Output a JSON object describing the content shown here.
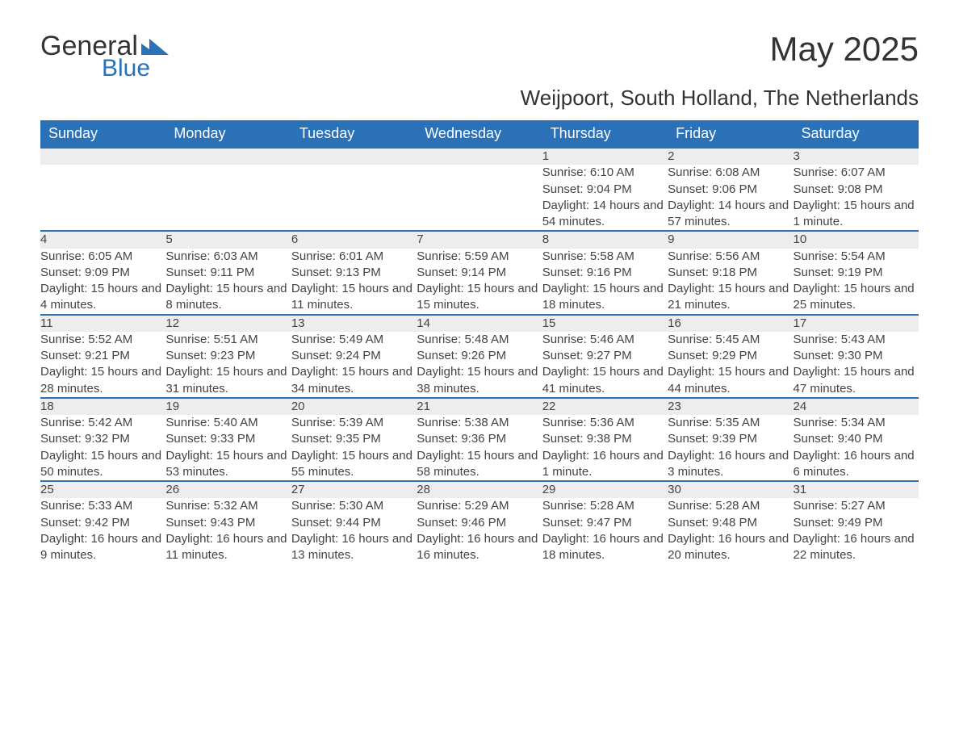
{
  "logo": {
    "text_general": "General",
    "text_blue": "Blue",
    "shape_color": "#2a71b8"
  },
  "title": "May 2025",
  "location": "Weijpoort, South Holland, The Netherlands",
  "colors": {
    "header_bg": "#2a71b8",
    "header_text": "#ffffff",
    "daynum_bg": "#ededed",
    "border": "#2a71b8",
    "body_text": "#444444",
    "page_bg": "#ffffff"
  },
  "weekdays": [
    "Sunday",
    "Monday",
    "Tuesday",
    "Wednesday",
    "Thursday",
    "Friday",
    "Saturday"
  ],
  "weeks": [
    [
      null,
      null,
      null,
      null,
      {
        "n": "1",
        "sunrise": "6:10 AM",
        "sunset": "9:04 PM",
        "daylight": "14 hours and 54 minutes."
      },
      {
        "n": "2",
        "sunrise": "6:08 AM",
        "sunset": "9:06 PM",
        "daylight": "14 hours and 57 minutes."
      },
      {
        "n": "3",
        "sunrise": "6:07 AM",
        "sunset": "9:08 PM",
        "daylight": "15 hours and 1 minute."
      }
    ],
    [
      {
        "n": "4",
        "sunrise": "6:05 AM",
        "sunset": "9:09 PM",
        "daylight": "15 hours and 4 minutes."
      },
      {
        "n": "5",
        "sunrise": "6:03 AM",
        "sunset": "9:11 PM",
        "daylight": "15 hours and 8 minutes."
      },
      {
        "n": "6",
        "sunrise": "6:01 AM",
        "sunset": "9:13 PM",
        "daylight": "15 hours and 11 minutes."
      },
      {
        "n": "7",
        "sunrise": "5:59 AM",
        "sunset": "9:14 PM",
        "daylight": "15 hours and 15 minutes."
      },
      {
        "n": "8",
        "sunrise": "5:58 AM",
        "sunset": "9:16 PM",
        "daylight": "15 hours and 18 minutes."
      },
      {
        "n": "9",
        "sunrise": "5:56 AM",
        "sunset": "9:18 PM",
        "daylight": "15 hours and 21 minutes."
      },
      {
        "n": "10",
        "sunrise": "5:54 AM",
        "sunset": "9:19 PM",
        "daylight": "15 hours and 25 minutes."
      }
    ],
    [
      {
        "n": "11",
        "sunrise": "5:52 AM",
        "sunset": "9:21 PM",
        "daylight": "15 hours and 28 minutes."
      },
      {
        "n": "12",
        "sunrise": "5:51 AM",
        "sunset": "9:23 PM",
        "daylight": "15 hours and 31 minutes."
      },
      {
        "n": "13",
        "sunrise": "5:49 AM",
        "sunset": "9:24 PM",
        "daylight": "15 hours and 34 minutes."
      },
      {
        "n": "14",
        "sunrise": "5:48 AM",
        "sunset": "9:26 PM",
        "daylight": "15 hours and 38 minutes."
      },
      {
        "n": "15",
        "sunrise": "5:46 AM",
        "sunset": "9:27 PM",
        "daylight": "15 hours and 41 minutes."
      },
      {
        "n": "16",
        "sunrise": "5:45 AM",
        "sunset": "9:29 PM",
        "daylight": "15 hours and 44 minutes."
      },
      {
        "n": "17",
        "sunrise": "5:43 AM",
        "sunset": "9:30 PM",
        "daylight": "15 hours and 47 minutes."
      }
    ],
    [
      {
        "n": "18",
        "sunrise": "5:42 AM",
        "sunset": "9:32 PM",
        "daylight": "15 hours and 50 minutes."
      },
      {
        "n": "19",
        "sunrise": "5:40 AM",
        "sunset": "9:33 PM",
        "daylight": "15 hours and 53 minutes."
      },
      {
        "n": "20",
        "sunrise": "5:39 AM",
        "sunset": "9:35 PM",
        "daylight": "15 hours and 55 minutes."
      },
      {
        "n": "21",
        "sunrise": "5:38 AM",
        "sunset": "9:36 PM",
        "daylight": "15 hours and 58 minutes."
      },
      {
        "n": "22",
        "sunrise": "5:36 AM",
        "sunset": "9:38 PM",
        "daylight": "16 hours and 1 minute."
      },
      {
        "n": "23",
        "sunrise": "5:35 AM",
        "sunset": "9:39 PM",
        "daylight": "16 hours and 3 minutes."
      },
      {
        "n": "24",
        "sunrise": "5:34 AM",
        "sunset": "9:40 PM",
        "daylight": "16 hours and 6 minutes."
      }
    ],
    [
      {
        "n": "25",
        "sunrise": "5:33 AM",
        "sunset": "9:42 PM",
        "daylight": "16 hours and 9 minutes."
      },
      {
        "n": "26",
        "sunrise": "5:32 AM",
        "sunset": "9:43 PM",
        "daylight": "16 hours and 11 minutes."
      },
      {
        "n": "27",
        "sunrise": "5:30 AM",
        "sunset": "9:44 PM",
        "daylight": "16 hours and 13 minutes."
      },
      {
        "n": "28",
        "sunrise": "5:29 AM",
        "sunset": "9:46 PM",
        "daylight": "16 hours and 16 minutes."
      },
      {
        "n": "29",
        "sunrise": "5:28 AM",
        "sunset": "9:47 PM",
        "daylight": "16 hours and 18 minutes."
      },
      {
        "n": "30",
        "sunrise": "5:28 AM",
        "sunset": "9:48 PM",
        "daylight": "16 hours and 20 minutes."
      },
      {
        "n": "31",
        "sunrise": "5:27 AM",
        "sunset": "9:49 PM",
        "daylight": "16 hours and 22 minutes."
      }
    ]
  ],
  "labels": {
    "sunrise": "Sunrise: ",
    "sunset": "Sunset: ",
    "daylight": "Daylight: "
  }
}
